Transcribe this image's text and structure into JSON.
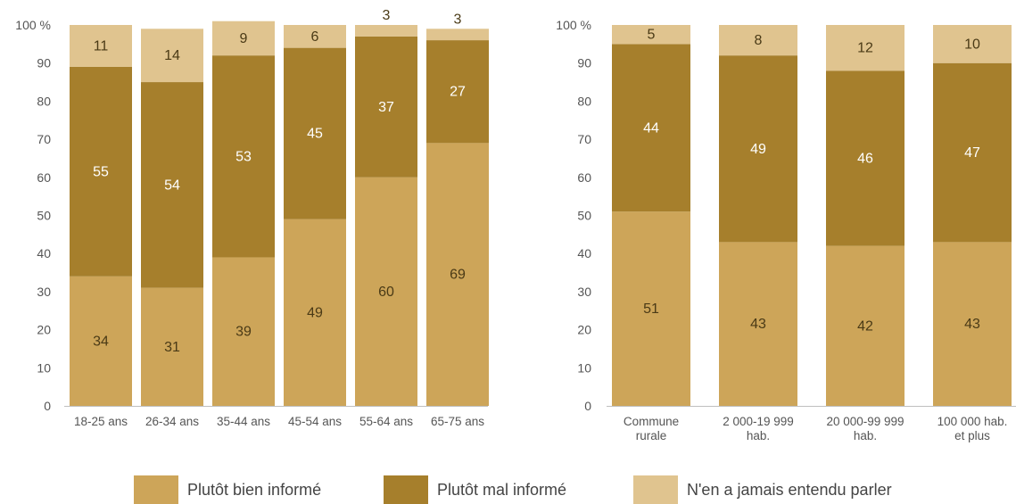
{
  "colors": {
    "bien": "#cda559",
    "mal": "#a67f2c",
    "jamais": "#e0c48f",
    "axis_text": "#555555",
    "label_light": "#ffffff",
    "label_dark": "#4a3a16"
  },
  "chart_data": [
    {
      "type": "bar",
      "stacked": true,
      "ylim": [
        0,
        100
      ],
      "y_ticks": [
        "0",
        "10",
        "20",
        "30",
        "40",
        "50",
        "60",
        "70",
        "80",
        "90",
        "100 %"
      ],
      "categories": [
        "18-25 ans",
        "26-34 ans",
        "35-44 ans",
        "45-54 ans",
        "55-64 ans",
        "65-75 ans"
      ],
      "series": [
        {
          "name": "Plutôt bien informé",
          "values": [
            34,
            31,
            39,
            49,
            60,
            69
          ]
        },
        {
          "name": "Plutôt mal informé",
          "values": [
            55,
            54,
            53,
            45,
            37,
            27
          ]
        },
        {
          "name": "N'en a jamais entendu parler",
          "values": [
            11,
            14,
            9,
            6,
            3,
            3
          ]
        }
      ]
    },
    {
      "type": "bar",
      "stacked": true,
      "ylim": [
        0,
        100
      ],
      "y_ticks": [
        "0",
        "10",
        "20",
        "30",
        "40",
        "50",
        "60",
        "70",
        "80",
        "90",
        "100 %"
      ],
      "categories": [
        [
          "Commune",
          "rurale"
        ],
        [
          "2 000-19 999",
          "hab."
        ],
        [
          "20 000-99 999",
          "hab."
        ],
        [
          "100 000 hab.",
          "et plus"
        ]
      ],
      "series": [
        {
          "name": "Plutôt bien informé",
          "values": [
            51,
            43,
            42,
            43
          ]
        },
        {
          "name": "Plutôt mal informé",
          "values": [
            44,
            49,
            46,
            47
          ]
        },
        {
          "name": "N'en a jamais entendu parler",
          "values": [
            5,
            8,
            12,
            10
          ]
        }
      ]
    }
  ],
  "legend": [
    {
      "label": "Plutôt bien informé",
      "color_key": "bien"
    },
    {
      "label": "Plutôt mal informé",
      "color_key": "mal"
    },
    {
      "label": "N'en a jamais entendu parler",
      "color_key": "jamais"
    }
  ]
}
